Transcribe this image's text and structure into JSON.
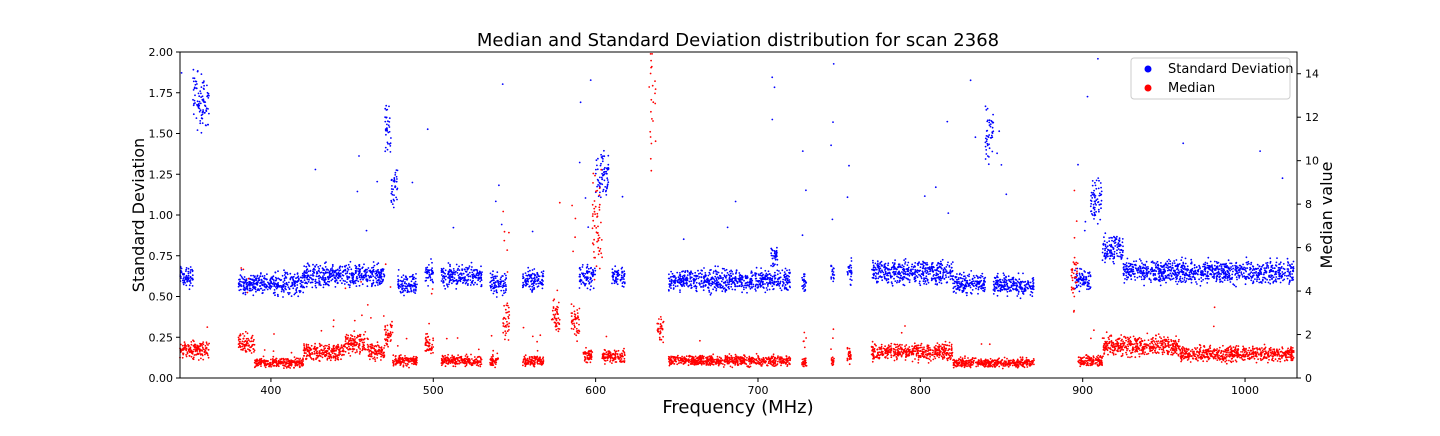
{
  "chart_data": {
    "type": "scatter",
    "title": "Median and Standard Deviation distribution for scan 2368",
    "xlabel": "Frequency (MHz)",
    "ylabel_left": "Standard Deviation",
    "ylabel_right": "Median value",
    "xlim": [
      344,
      1032
    ],
    "ylim_left": [
      0,
      2.0
    ],
    "ylim_right": [
      0,
      15
    ],
    "x_ticks": [
      400,
      500,
      600,
      700,
      800,
      900,
      1000
    ],
    "y_left_ticks": [
      "0.00",
      "0.25",
      "0.50",
      "0.75",
      "1.00",
      "1.25",
      "1.50",
      "1.75",
      "2.00"
    ],
    "y_right_ticks": [
      "0",
      "2",
      "4",
      "6",
      "8",
      "10",
      "12",
      "14"
    ],
    "legend_position": "top-right",
    "grid": false,
    "series": [
      {
        "name": "Standard Deviation",
        "color": "#0000ff",
        "axis": "left",
        "segments": [
          {
            "x": [
              344,
              352
            ],
            "level": 0.62
          },
          {
            "x": [
              352,
              362
            ],
            "level": 1.7
          },
          {
            "x": [
              380,
              420
            ],
            "level": 0.58
          },
          {
            "x": [
              420,
              470
            ],
            "level": 0.63
          },
          {
            "x": [
              470,
              474
            ],
            "level": 1.5
          },
          {
            "x": [
              474,
              478
            ],
            "level": 1.2
          },
          {
            "x": [
              478,
              490
            ],
            "level": 0.58
          },
          {
            "x": [
              495,
              500
            ],
            "level": 0.65
          },
          {
            "x": [
              505,
              530
            ],
            "level": 0.62
          },
          {
            "x": [
              535,
              545
            ],
            "level": 0.58
          },
          {
            "x": [
              555,
              568
            ],
            "level": 0.6
          },
          {
            "x": [
              590,
              600
            ],
            "level": 0.62
          },
          {
            "x": [
              600,
              608
            ],
            "level": 1.25
          },
          {
            "x": [
              610,
              618
            ],
            "level": 0.62
          },
          {
            "x": [
              645,
              720
            ],
            "level": 0.6
          },
          {
            "x": [
              708,
              712
            ],
            "level": 0.75
          },
          {
            "x": [
              727,
              730
            ],
            "level": 0.58
          },
          {
            "x": [
              745,
              747
            ],
            "level": 0.65
          },
          {
            "x": [
              755,
              758
            ],
            "level": 0.65
          },
          {
            "x": [
              770,
              820
            ],
            "level": 0.65
          },
          {
            "x": [
              820,
              840
            ],
            "level": 0.58
          },
          {
            "x": [
              840,
              845
            ],
            "level": 1.5
          },
          {
            "x": [
              845,
              870
            ],
            "level": 0.57
          },
          {
            "x": [
              895,
              905
            ],
            "level": 0.6
          },
          {
            "x": [
              905,
              912
            ],
            "level": 1.1
          },
          {
            "x": [
              912,
              925
            ],
            "level": 0.8
          },
          {
            "x": [
              925,
              1030
            ],
            "level": 0.65
          }
        ]
      },
      {
        "name": "Median",
        "color": "#ff0000",
        "axis": "right",
        "segments": [
          {
            "x": [
              344,
              362
            ],
            "level": 1.3
          },
          {
            "x": [
              380,
              390
            ],
            "level": 1.6
          },
          {
            "x": [
              390,
              420
            ],
            "level": 0.7
          },
          {
            "x": [
              420,
              445
            ],
            "level": 1.2
          },
          {
            "x": [
              445,
              460
            ],
            "level": 1.6
          },
          {
            "x": [
              460,
              470
            ],
            "level": 1.2
          },
          {
            "x": [
              470,
              475
            ],
            "level": 2.0
          },
          {
            "x": [
              475,
              490
            ],
            "level": 0.8
          },
          {
            "x": [
              495,
              500
            ],
            "level": 1.5
          },
          {
            "x": [
              505,
              530
            ],
            "level": 0.8
          },
          {
            "x": [
              535,
              540
            ],
            "level": 0.8
          },
          {
            "x": [
              543,
              547
            ],
            "level": 2.6
          },
          {
            "x": [
              555,
              568
            ],
            "level": 0.8
          },
          {
            "x": [
              573,
              578
            ],
            "level": 2.8
          },
          {
            "x": [
              585,
              590
            ],
            "level": 2.5
          },
          {
            "x": [
              592,
              598
            ],
            "level": 1.0
          },
          {
            "x": [
              598,
              604
            ],
            "level": 7.0
          },
          {
            "x": [
              604,
              618
            ],
            "level": 1.0
          },
          {
            "x": [
              633,
              637
            ],
            "level": 14.0
          },
          {
            "x": [
              638,
              642
            ],
            "level": 2.2
          },
          {
            "x": [
              645,
              720
            ],
            "level": 0.8
          },
          {
            "x": [
              727,
              730
            ],
            "level": 0.7
          },
          {
            "x": [
              745,
              747
            ],
            "level": 0.8
          },
          {
            "x": [
              755,
              758
            ],
            "level": 1.0
          },
          {
            "x": [
              770,
              820
            ],
            "level": 1.2
          },
          {
            "x": [
              820,
              870
            ],
            "level": 0.7
          },
          {
            "x": [
              893,
              897
            ],
            "level": 4.5
          },
          {
            "x": [
              897,
              912
            ],
            "level": 0.8
          },
          {
            "x": [
              912,
              960
            ],
            "level": 1.5
          },
          {
            "x": [
              960,
              1030
            ],
            "level": 1.1
          }
        ]
      }
    ]
  }
}
